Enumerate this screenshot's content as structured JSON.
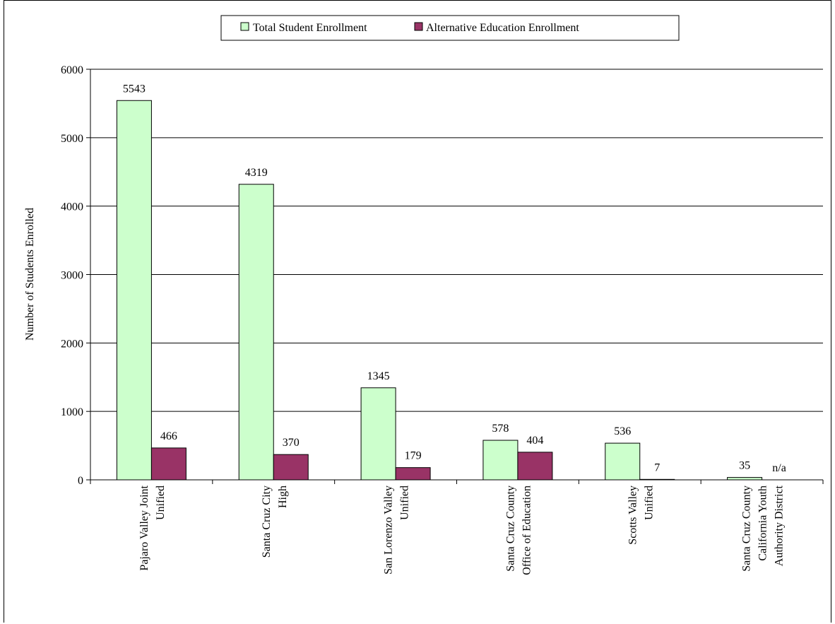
{
  "chart_data": {
    "type": "bar",
    "ylabel": "Number of Students Enrolled",
    "ylim": [
      0,
      6000
    ],
    "yticks": [
      0,
      1000,
      2000,
      3000,
      4000,
      5000,
      6000
    ],
    "ytick_labels": [
      "0",
      "1000",
      "2000",
      "3000",
      "4000",
      "5000",
      "6000"
    ],
    "grid": "horizontal",
    "legend_position": "top-center",
    "categories": [
      [
        "Pajaro Valley Joint",
        "Unified"
      ],
      [
        "Santa Cruz City",
        "High"
      ],
      [
        "San Lorenzo Valley",
        "Unified"
      ],
      [
        "Santa Cruz County",
        "Office of Education"
      ],
      [
        "Scotts Valley",
        "Unified"
      ],
      [
        "Santa Cruz County",
        "California Youth",
        "Authority District"
      ]
    ],
    "series": [
      {
        "name": "Total Student Enrollment",
        "color": "#ccffcc",
        "values": [
          5543,
          4319,
          1345,
          578,
          536,
          35
        ],
        "labels": [
          "5543",
          "4319",
          "1345",
          "578",
          "536",
          "35"
        ]
      },
      {
        "name": "Alternative Education Enrollment",
        "color": "#993366",
        "values": [
          466,
          370,
          179,
          404,
          7,
          null
        ],
        "labels": [
          "466",
          "370",
          "179",
          "404",
          "7",
          "n/a"
        ]
      }
    ]
  }
}
